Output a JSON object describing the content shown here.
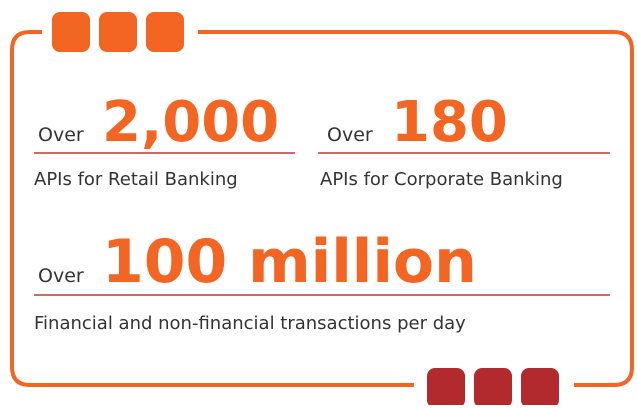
{
  "stats": [
    {
      "prefix": "Over",
      "value": "2,000",
      "description": "APIs for Retail Banking"
    },
    {
      "prefix": "Over",
      "value": "180",
      "description": "APIs for Corporate Banking"
    },
    {
      "prefix": "Over",
      "value": "100 million",
      "description": "Financial and non-financial transactions per day"
    }
  ]
}
